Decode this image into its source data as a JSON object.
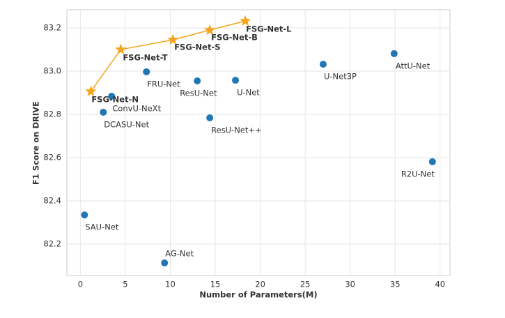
{
  "chart_data": {
    "type": "scatter",
    "xlabel": "Number of Parameters(M)",
    "ylabel": "F1 Score on DRIVE",
    "xlim": [
      -1.5,
      41.1
    ],
    "ylim": [
      82.055,
      83.284
    ],
    "xticks": [
      0,
      5,
      10,
      15,
      20,
      25,
      30,
      35,
      40
    ],
    "yticks": [
      82.2,
      82.4,
      82.6,
      82.8,
      {
        "value": 83,
        "label": "83.0"
      },
      83.2
    ],
    "grid": true,
    "series": [
      {
        "color": "#f5a31a",
        "marker": "star",
        "line": true,
        "bold_labels": true,
        "labels": [
          "FSG-Net-N",
          "FSG-Net-T",
          "FSG-Net-S",
          "FSG-Net-B",
          "FSG-Net-L"
        ],
        "x": [
          1.16,
          4.49,
          10.29,
          14.39,
          18.34
        ],
        "values": [
          82.906,
          83.1,
          83.145,
          83.19,
          83.232
        ]
      },
      {
        "color": "#1f77b4",
        "marker": "circle",
        "line": false,
        "bold_labels": false,
        "labels": [
          "SAU-Net",
          "AG-Net",
          "DCASU-Net",
          "ConvU-NeXt",
          "FRU-Net",
          "ResU-Net",
          "U-Net",
          "ResU-Net++",
          "U-Net3P",
          "AttU-Net",
          "R2U-Net"
        ],
        "x": [
          0.46,
          9.36,
          2.55,
          3.48,
          7.35,
          13.0,
          17.25,
          14.39,
          27.0,
          34.89,
          39.15
        ],
        "values": [
          82.335,
          82.113,
          82.81,
          82.884,
          82.997,
          82.955,
          82.958,
          82.784,
          83.032,
          83.081,
          82.581
        ]
      }
    ]
  }
}
